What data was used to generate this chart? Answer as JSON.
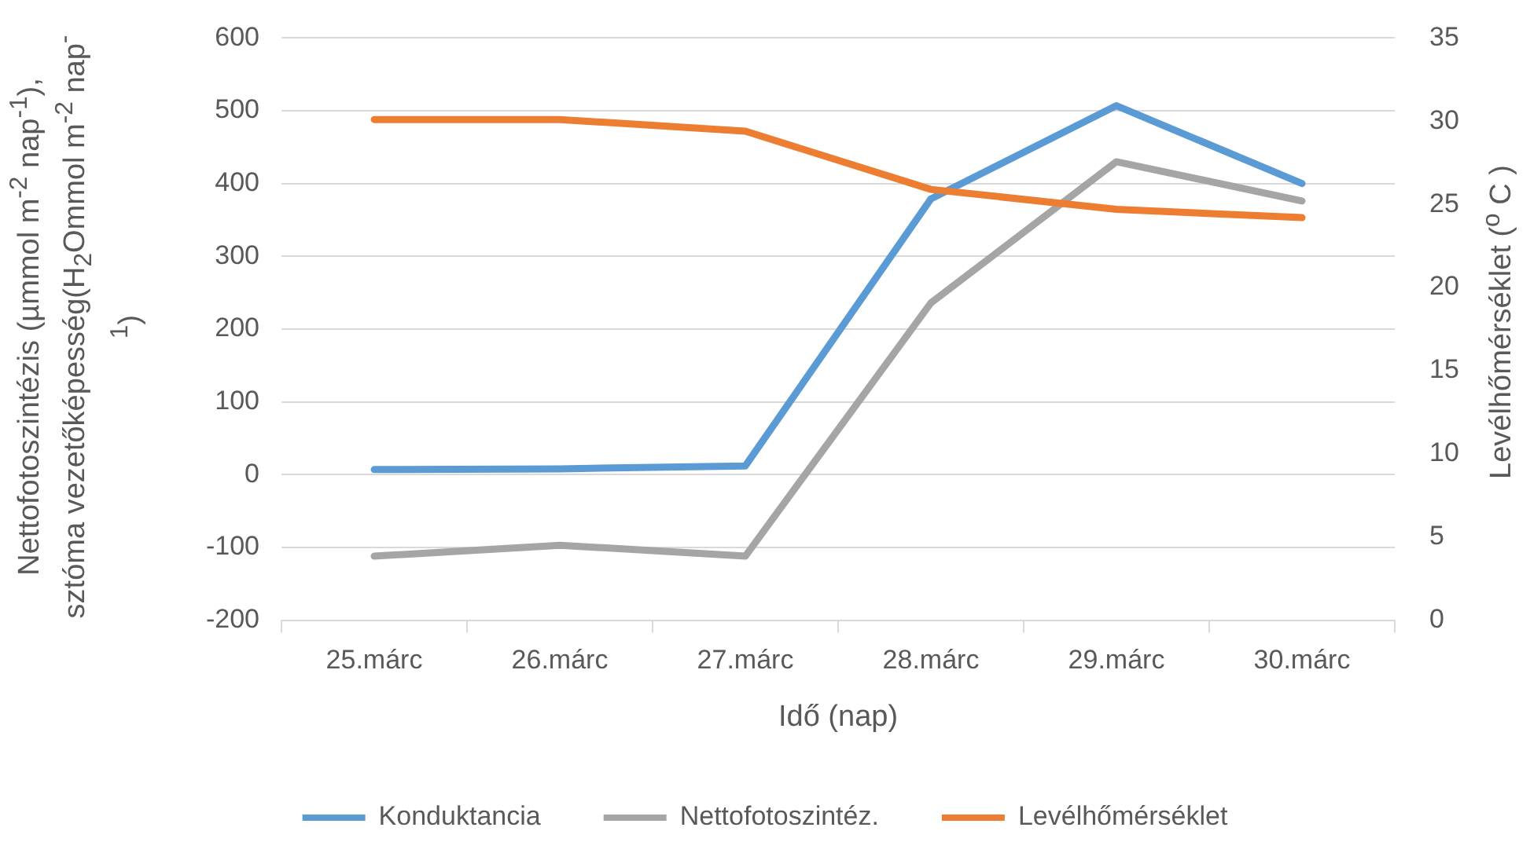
{
  "chart_data": {
    "type": "line",
    "xlabel": "Idő (nap)",
    "ylabel": "Nettofotoszintézis (µmmol m$^{-2}$  nap$^{-1}$), sztóma vezetőképesség(H$_{2}$Ommol m$^{-2}$ nap$^{-1}$)",
    "y2label": "Levélhőmérséklet ($^{o}$ C )",
    "categories": [
      "25.márc",
      "26.márc",
      "27.márc",
      "28.márc",
      "29.márc",
      "30.márc"
    ],
    "series": [
      {
        "name": "Konduktancia",
        "color": "#5b9bd5",
        "values": [
          7,
          8,
          12,
          379,
          507,
          400
        ]
      },
      {
        "name": "Nettofotoszintéz.",
        "color": "#a5a5a5",
        "values": [
          -112,
          -97,
          -112,
          236,
          430,
          376
        ]
      },
      {
        "name": "Levélhőmérséklet",
        "color": "#ed7d31",
        "axis": "y2",
        "values": [
          30.1,
          30.1,
          29.4,
          25.9,
          24.7,
          24.2
        ]
      }
    ],
    "ylim": [
      -200,
      600
    ],
    "yticks": [
      -200,
      -100,
      0,
      100,
      200,
      300,
      400,
      500,
      600
    ],
    "y2lim": [
      0,
      35
    ],
    "y2ticks": [
      0,
      5,
      10,
      15,
      20,
      25,
      30,
      35
    ],
    "grid": "y",
    "legend": "bottom"
  }
}
